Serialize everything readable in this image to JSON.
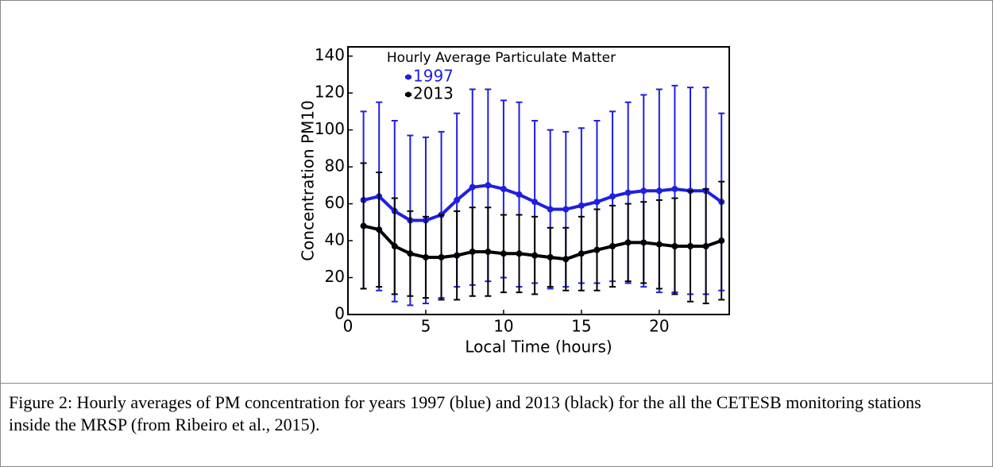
{
  "chart_data": {
    "type": "line",
    "title": "Hourly Average Particulate Matter",
    "x_label": "Local Time (hours)",
    "y_label": "Concentration PM10",
    "x": [
      1,
      2,
      3,
      4,
      5,
      6,
      7,
      8,
      9,
      10,
      11,
      12,
      13,
      14,
      15,
      16,
      17,
      18,
      19,
      20,
      21,
      22,
      23,
      24
    ],
    "series": [
      {
        "name": "1997",
        "color": "#1f1fe0",
        "values": [
          62,
          64,
          56,
          51,
          51,
          54,
          62,
          69,
          70,
          68,
          65,
          61,
          57,
          57,
          59,
          61,
          64,
          66,
          67,
          67,
          68,
          67,
          67,
          61
        ],
        "errors": [
          48,
          51,
          49,
          46,
          45,
          45,
          47,
          53,
          52,
          48,
          50,
          44,
          43,
          42,
          42,
          44,
          46,
          49,
          52,
          55,
          56,
          56,
          56,
          48
        ]
      },
      {
        "name": "2013",
        "color": "#000000",
        "values": [
          48,
          46,
          37,
          33,
          31,
          31,
          32,
          34,
          34,
          33,
          33,
          32,
          31,
          30,
          33,
          35,
          37,
          39,
          39,
          38,
          37,
          37,
          37,
          40
        ],
        "errors": [
          34,
          31,
          26,
          23,
          22,
          23,
          24,
          24,
          24,
          21,
          21,
          21,
          16,
          17,
          20,
          22,
          22,
          21,
          22,
          24,
          26,
          30,
          31,
          32
        ]
      }
    ],
    "xlim": [
      0,
      24.5
    ],
    "xticks": [
      0,
      5,
      10,
      15,
      20
    ],
    "ylim": [
      0,
      145
    ],
    "yticks": [
      0,
      20,
      40,
      60,
      80,
      100,
      120,
      140
    ],
    "legend": "upper left"
  },
  "caption": "Figure 2: Hourly averages of PM concentration for years 1997 (blue) and 2013 (black) for the all the CETESB monitoring stations inside the MRSP (from Ribeiro et al., 2015)."
}
